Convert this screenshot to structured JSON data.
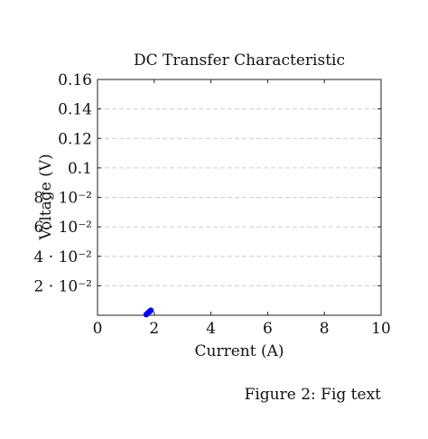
{
  "chart_data": {
    "type": "scatter",
    "title": "DC Transfer Characteristic",
    "xlabel": "Current (A)",
    "ylabel": "Voltage (V)",
    "xlim": [
      0,
      10
    ],
    "ylim": [
      0,
      0.16
    ],
    "x_ticks": [
      {
        "value": 0,
        "label": "0"
      },
      {
        "value": 2,
        "label": "2"
      },
      {
        "value": 4,
        "label": "4"
      },
      {
        "value": 6,
        "label": "6"
      },
      {
        "value": 8,
        "label": "8"
      },
      {
        "value": 10,
        "label": "10"
      }
    ],
    "y_ticks": [
      {
        "value": 0.02,
        "label": "2 · 10⁻²"
      },
      {
        "value": 0.04,
        "label": "4 · 10⁻²"
      },
      {
        "value": 0.06,
        "label": "6 · 10⁻²"
      },
      {
        "value": 0.08,
        "label": "8 · 10⁻²"
      },
      {
        "value": 0.1,
        "label": "0.1"
      },
      {
        "value": 0.12,
        "label": "0.12"
      },
      {
        "value": 0.14,
        "label": "0.14"
      },
      {
        "value": 0.16,
        "label": "0.16"
      }
    ],
    "grid": "horizontal-dashed",
    "series": [
      {
        "color": "#0000ee",
        "x": [
          1.72,
          1.76,
          1.8,
          1.84,
          1.88
        ],
        "y": [
          0.0005,
          0.0012,
          0.0019,
          0.0026,
          0.0033
        ]
      }
    ]
  },
  "caption": "Figure 2: Fig text"
}
